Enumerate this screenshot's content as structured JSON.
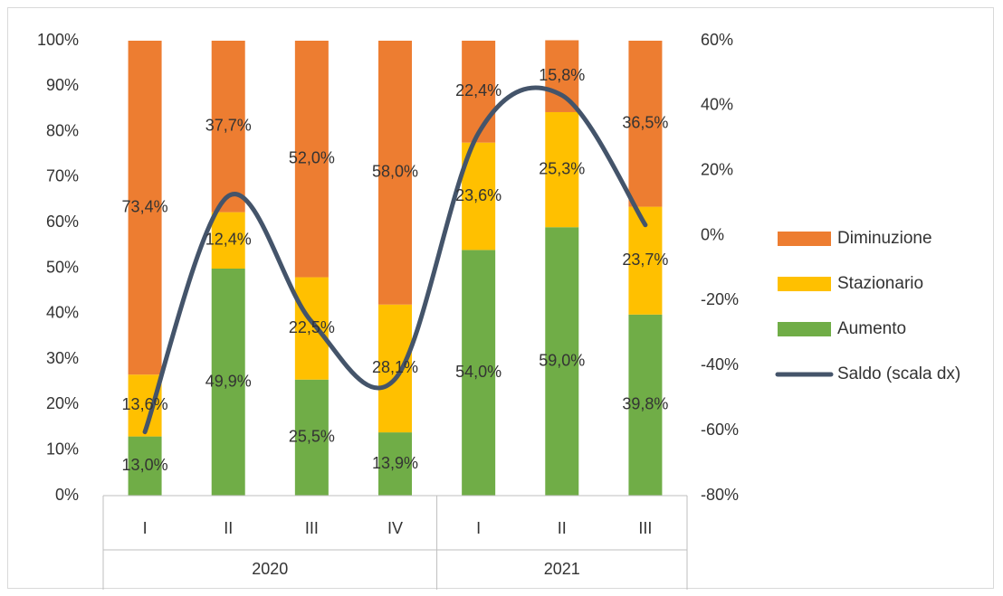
{
  "chart_data": {
    "type": "bar",
    "stacked": true,
    "categories": [
      "I",
      "II",
      "III",
      "IV",
      "I",
      "II",
      "III"
    ],
    "groups": [
      {
        "label": "2020",
        "count": 4
      },
      {
        "label": "2021",
        "count": 3
      }
    ],
    "series": [
      {
        "name": "Aumento",
        "color": "#70ad47",
        "values": [
          13.0,
          49.9,
          25.5,
          13.9,
          54.0,
          59.0,
          39.8
        ],
        "labels": [
          "13,0%",
          "49,9%",
          "25,5%",
          "13,9%",
          "54,0%",
          "59,0%",
          "39,8%"
        ]
      },
      {
        "name": "Stazionario",
        "color": "#ffc000",
        "values": [
          13.6,
          12.4,
          22.5,
          28.1,
          23.6,
          25.3,
          23.7
        ],
        "labels": [
          "13,6%",
          "12,4%",
          "22,5%",
          "28,1%",
          "23,6%",
          "25,3%",
          "23,7%"
        ]
      },
      {
        "name": "Diminuzione",
        "color": "#ed7d31",
        "values": [
          73.4,
          37.7,
          52.0,
          58.0,
          22.4,
          15.8,
          36.5
        ],
        "labels": [
          "73,4%",
          "37,7%",
          "52,0%",
          "58,0%",
          "22,4%",
          "15,8%",
          "36,5%"
        ]
      }
    ],
    "line": {
      "name": "Saldo (scala dx)",
      "color": "#44546a",
      "axis": "right",
      "values": [
        -60.4,
        12.2,
        -26.5,
        -44.1,
        31.6,
        43.2,
        3.3
      ]
    },
    "y_left": {
      "min": 0,
      "max": 100,
      "step": 10,
      "ticks": [
        "0%",
        "10%",
        "20%",
        "30%",
        "40%",
        "50%",
        "60%",
        "70%",
        "80%",
        "90%",
        "100%"
      ]
    },
    "y_right": {
      "min": -80,
      "max": 60,
      "step": 20,
      "ticks": [
        "-80%",
        "-60%",
        "-40%",
        "-20%",
        "0%",
        "20%",
        "40%",
        "60%"
      ]
    },
    "legend": {
      "position": "right",
      "items": [
        "Diminuzione",
        "Stazionario",
        "Aumento",
        "Saldo (scala dx)"
      ]
    },
    "grid": false
  }
}
